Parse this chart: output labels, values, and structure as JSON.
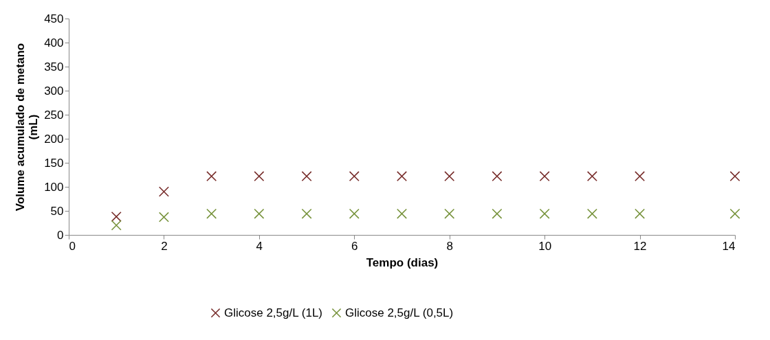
{
  "chart_data": {
    "type": "scatter",
    "xlabel": "Tempo (dias)",
    "ylabel": "Volume acumulado de metano\n(mL)",
    "x": [
      1,
      2,
      3,
      4,
      5,
      6,
      7,
      8,
      9,
      10,
      11,
      12,
      14
    ],
    "series": [
      {
        "name": "Glicose 2,5g/L (1L)",
        "color": "#772c2a",
        "values": [
          38,
          90,
          122,
          122,
          122,
          122,
          122,
          122,
          122,
          122,
          122,
          122,
          122
        ]
      },
      {
        "name": "Glicose 2,5g/L (0,5L)",
        "color": "#77933c",
        "values": [
          20,
          37,
          44,
          44,
          44,
          44,
          44,
          44,
          44,
          44,
          44,
          44,
          44
        ]
      }
    ],
    "xlim": [
      0,
      14
    ],
    "xticks": [
      0,
      2,
      4,
      6,
      8,
      10,
      12,
      14
    ],
    "ylim": [
      0,
      450
    ],
    "yticks": [
      0,
      50,
      100,
      150,
      200,
      250,
      300,
      350,
      400,
      450
    ],
    "marker": "cross",
    "legend": "bottom",
    "grid": false
  }
}
